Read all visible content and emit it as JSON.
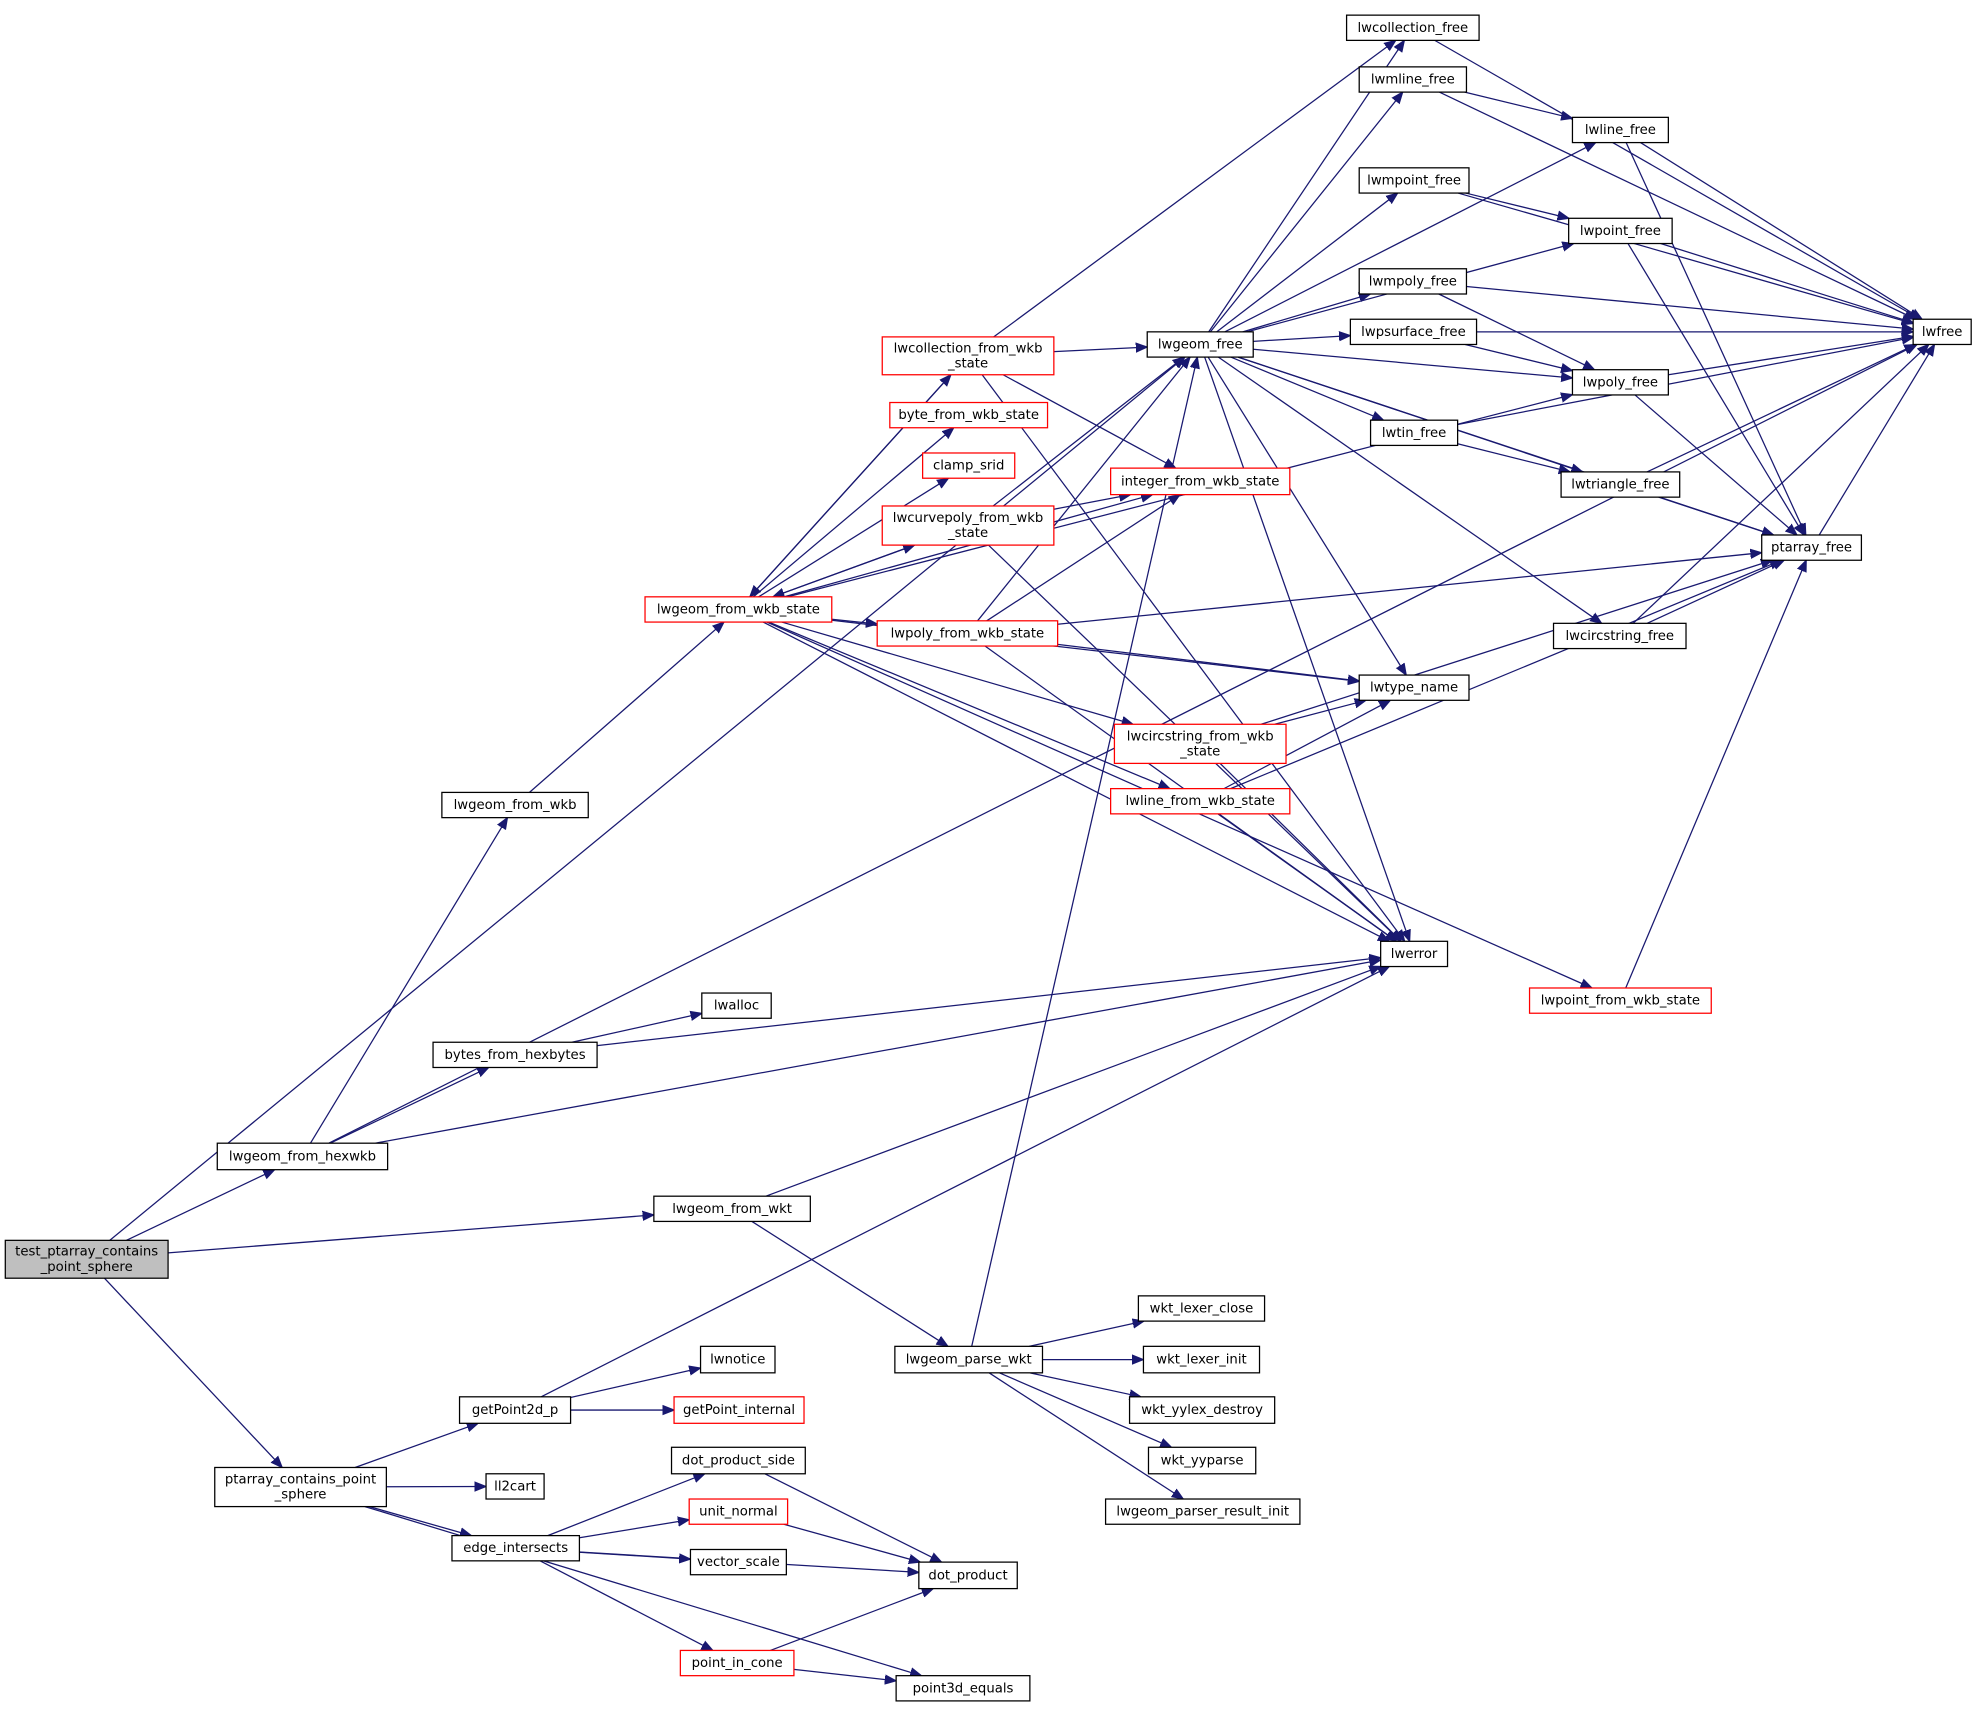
{
  "nodes": [
    {
      "lines": [
        "test_ptarray_contains",
        "_point_sphere"
      ]
    },
    {
      "lines": [
        "lwgeom_from_hexwkb"
      ]
    },
    {
      "lines": [
        "ptarray_contains_point",
        "_sphere"
      ]
    },
    {
      "lines": [
        "lwgeom_from_wkt"
      ]
    },
    {
      "lines": [
        "lwgeom_from_wkb"
      ]
    },
    {
      "lines": [
        "bytes_from_hexbytes"
      ]
    },
    {
      "lines": [
        "lwalloc"
      ]
    },
    {
      "lines": [
        "lwgeom_from_wkb_state"
      ]
    },
    {
      "lines": [
        "lwcollection_from_wkb",
        "_state"
      ]
    },
    {
      "lines": [
        "byte_from_wkb_state"
      ]
    },
    {
      "lines": [
        "clamp_srid"
      ]
    },
    {
      "lines": [
        "lwcurvepoly_from_wkb",
        "_state"
      ]
    },
    {
      "lines": [
        "lwpoly_from_wkb_state"
      ]
    },
    {
      "lines": [
        "lwgeom_free"
      ]
    },
    {
      "lines": [
        "integer_from_wkb_state"
      ]
    },
    {
      "lines": [
        "lwcircstring_from_wkb",
        "_state"
      ]
    },
    {
      "lines": [
        "lwline_from_wkb_state"
      ]
    },
    {
      "lines": [
        "lwerror"
      ]
    },
    {
      "lines": [
        "lwtype_name"
      ]
    },
    {
      "lines": [
        "lwcollection_free"
      ]
    },
    {
      "lines": [
        "lwmline_free"
      ]
    },
    {
      "lines": [
        "lwmpoint_free"
      ]
    },
    {
      "lines": [
        "lwmpoly_free"
      ]
    },
    {
      "lines": [
        "lwpsurface_free"
      ]
    },
    {
      "lines": [
        "lwtin_free"
      ]
    },
    {
      "lines": [
        "lwline_free"
      ]
    },
    {
      "lines": [
        "lwpoint_free"
      ]
    },
    {
      "lines": [
        "lwpoly_free"
      ]
    },
    {
      "lines": [
        "lwtriangle_free"
      ]
    },
    {
      "lines": [
        "lwcircstring_free"
      ]
    },
    {
      "lines": [
        "ptarray_free"
      ]
    },
    {
      "lines": [
        "lwfree"
      ]
    },
    {
      "lines": [
        "lwpoint_from_wkb_state"
      ]
    },
    {
      "lines": [
        "lwgeom_parse_wkt"
      ]
    },
    {
      "lines": [
        "wkt_lexer_close"
      ]
    },
    {
      "lines": [
        "wkt_lexer_init"
      ]
    },
    {
      "lines": [
        "wkt_yylex_destroy"
      ]
    },
    {
      "lines": [
        "wkt_yyparse"
      ]
    },
    {
      "lines": [
        "lwgeom_parser_result_init"
      ]
    },
    {
      "lines": [
        "getPoint2d_p"
      ]
    },
    {
      "lines": [
        "lwnotice"
      ]
    },
    {
      "lines": [
        "getPoint_internal"
      ]
    },
    {
      "lines": [
        "ll2cart"
      ]
    },
    {
      "lines": [
        "edge_intersects"
      ]
    },
    {
      "lines": [
        "dot_product_side"
      ]
    },
    {
      "lines": [
        "unit_normal"
      ]
    },
    {
      "lines": [
        "vector_scale"
      ]
    },
    {
      "lines": [
        "dot_product"
      ]
    },
    {
      "lines": [
        "point_in_cone"
      ]
    },
    {
      "lines": [
        "point3d_equals"
      ]
    }
  ]
}
